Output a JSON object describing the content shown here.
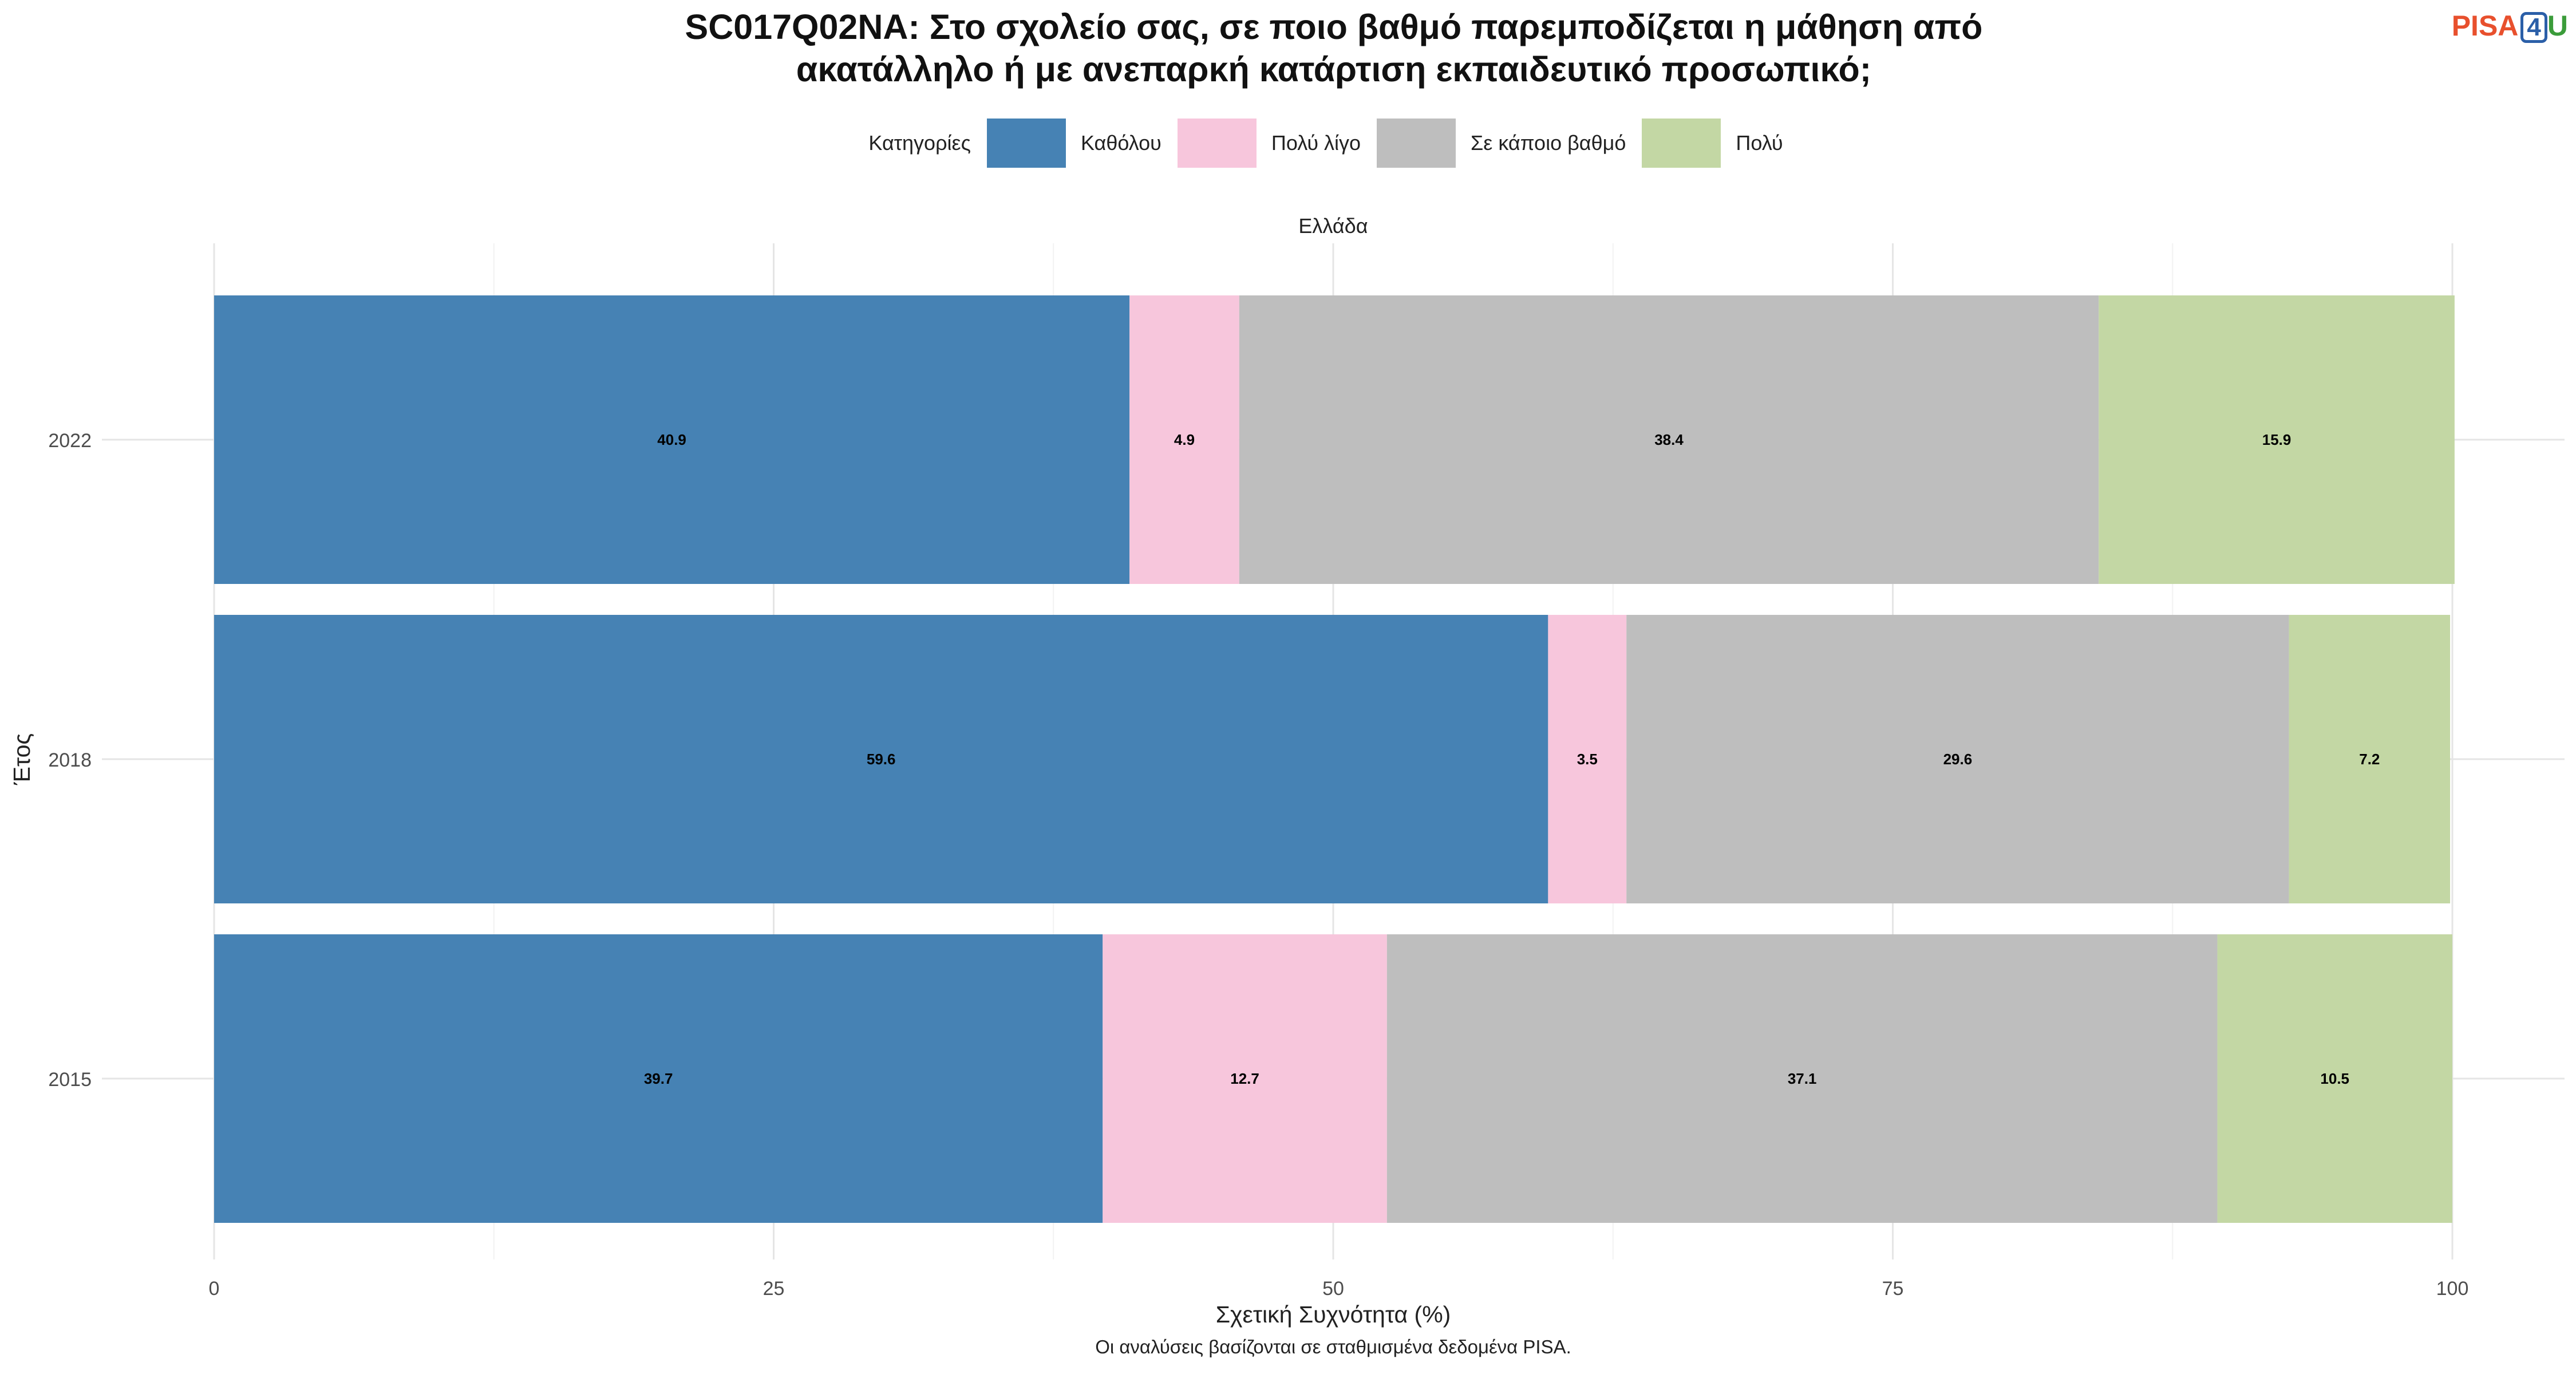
{
  "title_lines": [
    "SC017Q02NA: Στο σχολείο σας, σε ποιο βαθμό παρεμποδίζεται η μάθηση από",
    "ακατάλληλο ή με ανεπαρκή κατάρτιση εκπαιδευτικό προσωπικό;"
  ],
  "logo": {
    "pisa": "PISA",
    "four": "4",
    "u": "U"
  },
  "legend": {
    "title": "Κατηγορίες",
    "items": [
      {
        "label": "Καθόλου",
        "color": "#4682b4"
      },
      {
        "label": "Πολύ λίγο",
        "color": "#f7c6dc"
      },
      {
        "label": "Σε κάποιο βαθμό",
        "color": "#bebebe"
      },
      {
        "label": "Πολύ",
        "color": "#c3d7a4"
      }
    ]
  },
  "facet_label": "Ελλάδα",
  "caption": "Οι αναλύσεις βασίζονται σε σταθμισμένα δεδομένα PISA.",
  "chart_data": {
    "type": "bar",
    "orientation": "horizontal",
    "stacked": true,
    "xlabel": "Σχετική Συχνότητα (%)",
    "ylabel": "Έτος",
    "xlim": [
      0,
      100
    ],
    "xticks": [
      "0",
      "25",
      "50",
      "75",
      "100"
    ],
    "categories": [
      "2022",
      "2018",
      "2015"
    ],
    "series": [
      {
        "name": "Καθόλου",
        "color": "#4682b4",
        "values": [
          40.9,
          59.6,
          39.7
        ]
      },
      {
        "name": "Πολύ λίγο",
        "color": "#f7c6dc",
        "values": [
          4.9,
          3.5,
          12.7
        ]
      },
      {
        "name": "Σε κάποιο βαθμό",
        "color": "#bebebe",
        "values": [
          38.4,
          29.6,
          37.1
        ]
      },
      {
        "name": "Πολύ",
        "color": "#c3d7a4",
        "values": [
          15.9,
          7.2,
          10.5
        ]
      }
    ],
    "grid": true,
    "legend_position": "top"
  }
}
